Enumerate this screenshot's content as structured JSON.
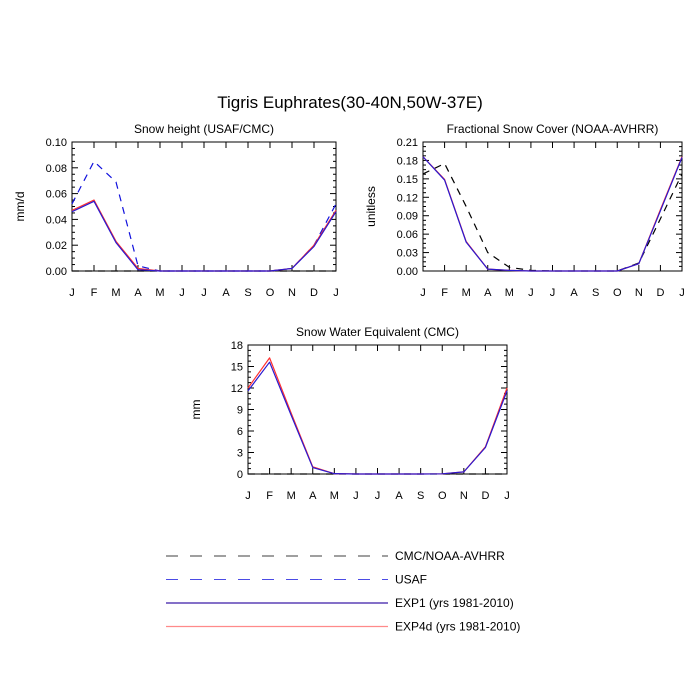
{
  "figure_title": "Tigris Euphrates(30-40N,50W-37E)",
  "legend": [
    {
      "label": "CMC/NOAA-AVHRR",
      "color": "#000000",
      "dash": "dash",
      "width": 0.5
    },
    {
      "label": "USAF",
      "color": "#1010dd",
      "dash": "dash",
      "width": 0.5
    },
    {
      "label": "EXP1 (yrs 1981-2010)",
      "color": "#3a1aa6",
      "dash": "solid",
      "width": 0.8
    },
    {
      "label": "EXP4d (yrs 1981-2010)",
      "color": "#ff8a8a",
      "dash": "solid",
      "width": 0.8
    }
  ],
  "chart_data": [
    {
      "type": "line",
      "title": "Snow height (USAF/CMC)",
      "xlabel": "",
      "ylabel": "mm/d",
      "categories": [
        "J",
        "F",
        "M",
        "A",
        "M",
        "J",
        "J",
        "A",
        "S",
        "O",
        "N",
        "D",
        "J"
      ],
      "ylim": [
        0,
        0.1
      ],
      "yticks": [
        0,
        0.02,
        0.04,
        0.06,
        0.08,
        0.1
      ],
      "ytick_labels": [
        "0.00",
        "0.02",
        "0.04",
        "0.06",
        "0.08",
        "0.10"
      ],
      "series": [
        {
          "name": "CMC/NOAA-AVHRR",
          "color": "#000000",
          "dash": "dash",
          "values": [
            0,
            0,
            0,
            0,
            0,
            0,
            0,
            0,
            0,
            0,
            0,
            0,
            0
          ]
        },
        {
          "name": "USAF",
          "color": "#1010dd",
          "dash": "dash",
          "values": [
            0.052,
            0.085,
            0.069,
            0.004,
            0,
            0,
            0,
            0,
            0,
            0,
            0.002,
            0.02,
            0.052
          ]
        },
        {
          "name": "EXP4d (yrs 1981-2010)",
          "color": "#ff3030",
          "dash": "solid",
          "values": [
            0.047,
            0.055,
            0.023,
            0.002,
            0,
            0,
            0,
            0,
            0,
            0,
            0.002,
            0.02,
            0.047
          ]
        },
        {
          "name": "EXP1 (yrs 1981-2010)",
          "color": "#2a1ad0",
          "dash": "solid",
          "values": [
            0.046,
            0.054,
            0.022,
            0.001,
            0,
            0,
            0,
            0,
            0,
            0,
            0.002,
            0.019,
            0.046
          ]
        }
      ]
    },
    {
      "type": "line",
      "title": "Fractional Snow Cover (NOAA-AVHRR)",
      "xlabel": "",
      "ylabel": "unitless",
      "categories": [
        "J",
        "F",
        "M",
        "A",
        "M",
        "J",
        "J",
        "A",
        "S",
        "O",
        "N",
        "D",
        "J"
      ],
      "ylim": [
        0,
        0.21
      ],
      "yticks": [
        0,
        0.03,
        0.06,
        0.09,
        0.12,
        0.15,
        0.18,
        0.21
      ],
      "ytick_labels": [
        "0.00",
        "0.03",
        "0.06",
        "0.09",
        "0.12",
        "0.15",
        "0.18",
        "0.21"
      ],
      "series": [
        {
          "name": "CMC/NOAA-AVHRR",
          "color": "#000000",
          "dash": "dash",
          "values": [
            0.158,
            0.175,
            0.105,
            0.03,
            0.006,
            0.001,
            0,
            0,
            0,
            0,
            0.013,
            0.085,
            0.158
          ]
        },
        {
          "name": "EXP4d (yrs 1981-2010)",
          "color": "#ff3030",
          "dash": "solid",
          "values": [
            0.186,
            0.149,
            0.048,
            0.003,
            0.001,
            0,
            0,
            0,
            0,
            0,
            0.012,
            0.1,
            0.186
          ]
        },
        {
          "name": "EXP1 (yrs 1981-2010)",
          "color": "#2a1ad0",
          "dash": "solid",
          "values": [
            0.186,
            0.148,
            0.047,
            0.003,
            0.001,
            0,
            0,
            0,
            0,
            0,
            0.012,
            0.098,
            0.185
          ]
        }
      ]
    },
    {
      "type": "line",
      "title": "Snow Water Equivalent (CMC)",
      "xlabel": "",
      "ylabel": "mm",
      "categories": [
        "J",
        "F",
        "M",
        "A",
        "M",
        "J",
        "J",
        "A",
        "S",
        "O",
        "N",
        "D",
        "J"
      ],
      "ylim": [
        0,
        18
      ],
      "yticks": [
        0,
        3,
        6,
        9,
        12,
        15,
        18
      ],
      "ytick_labels": [
        "0",
        "3",
        "6",
        "9",
        "12",
        "15",
        "18"
      ],
      "series": [
        {
          "name": "CMC/NOAA-AVHRR",
          "color": "#000000",
          "dash": "dash",
          "values": [
            0,
            0,
            0,
            0,
            0,
            0,
            0,
            0,
            0,
            0,
            0,
            0,
            0
          ]
        },
        {
          "name": "EXP4d (yrs 1981-2010)",
          "color": "#ff3030",
          "dash": "solid",
          "values": [
            12.0,
            16.2,
            8.5,
            1.0,
            0.05,
            0,
            0,
            0,
            0,
            0.03,
            0.3,
            3.8,
            12.0
          ]
        },
        {
          "name": "EXP1 (yrs 1981-2010)",
          "color": "#2a1ad0",
          "dash": "solid",
          "values": [
            11.6,
            15.6,
            8.2,
            0.9,
            0.05,
            0,
            0,
            0,
            0,
            0.03,
            0.3,
            3.7,
            11.6
          ]
        }
      ]
    }
  ]
}
